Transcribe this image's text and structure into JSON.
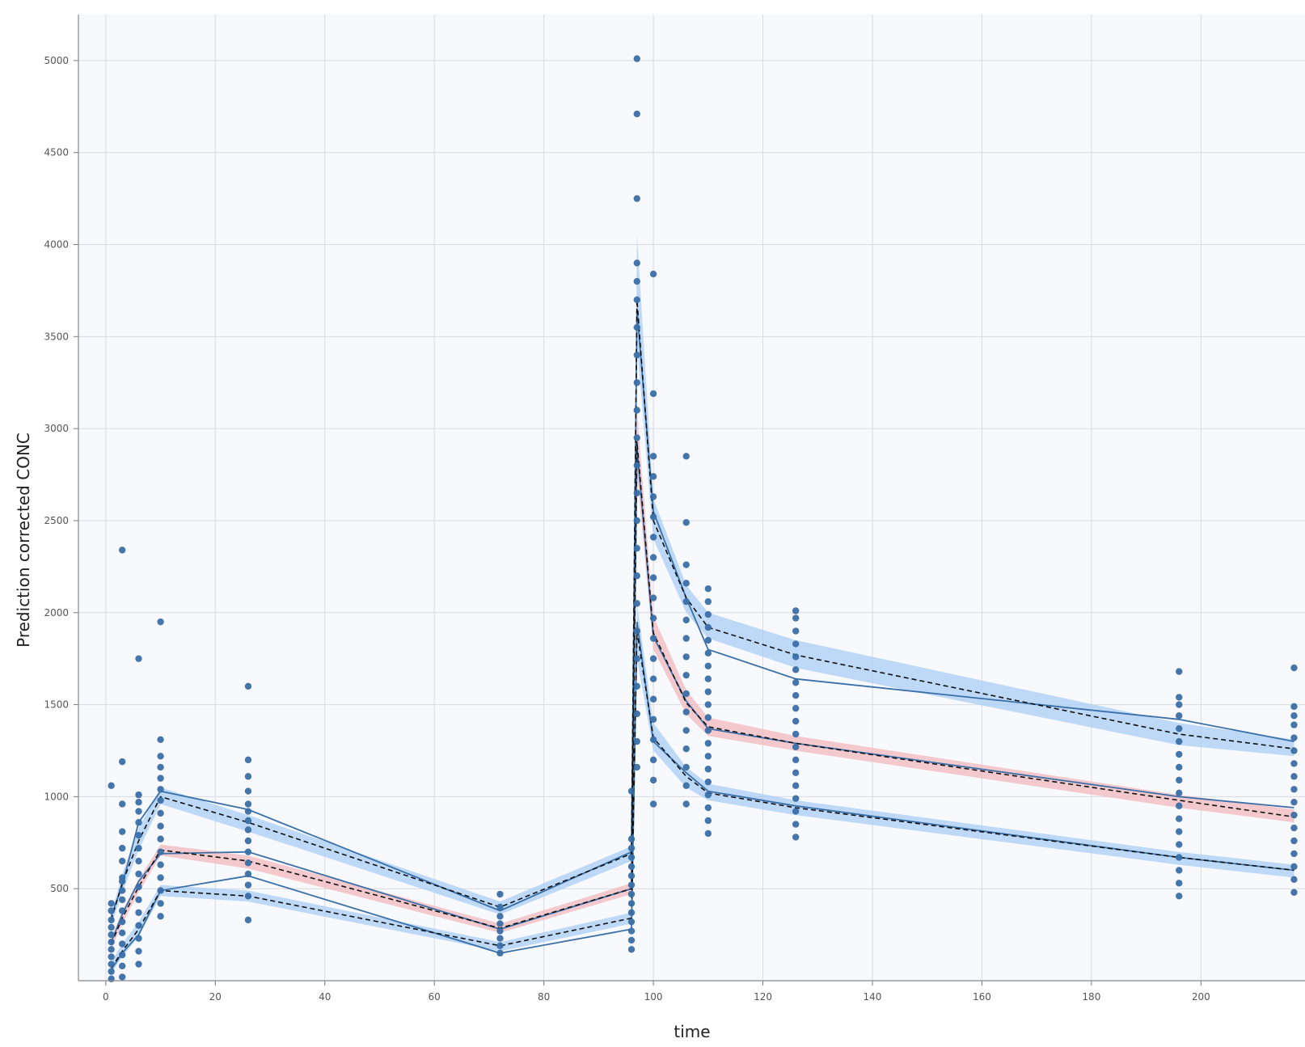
{
  "chart_data": {
    "type": "line",
    "title": "",
    "xlabel": "time",
    "ylabel": "Prediction corrected CONC",
    "xlim": [
      -5,
      219
    ],
    "ylim": [
      0,
      5250
    ],
    "x_ticks": [
      0,
      20,
      40,
      60,
      80,
      100,
      120,
      140,
      160,
      180,
      200
    ],
    "y_ticks": [
      500,
      1000,
      1500,
      2000,
      2500,
      3000,
      3500,
      4000,
      4500,
      5000
    ],
    "grid": true,
    "legend": "none",
    "colors": {
      "observed": "#3a6fa8",
      "outer_band": "#a9cdf5",
      "median_band": "#f2b8bd",
      "simulated_median": "#111111",
      "background": "#f8f9fc",
      "grid": "#d8dbe2"
    },
    "bands": [
      {
        "role": "upper",
        "color": "outer_band",
        "x": [
          1,
          3,
          6,
          10,
          26,
          72,
          96,
          97,
          100,
          106,
          110,
          126,
          196,
          217
        ],
        "lo": [
          300,
          480,
          710,
          960,
          810,
          360,
          650,
          3450,
          2400,
          2000,
          1860,
          1700,
          1280,
          1220
        ],
        "hi": [
          360,
          580,
          830,
          1050,
          900,
          430,
          730,
          4050,
          2620,
          2150,
          2000,
          1850,
          1400,
          1310
        ]
      },
      {
        "role": "median",
        "color": "median_band",
        "x": [
          1,
          3,
          6,
          10,
          26,
          72,
          96,
          97,
          100,
          106,
          110,
          126,
          196,
          217
        ],
        "lo": [
          170,
          310,
          480,
          680,
          610,
          260,
          470,
          2750,
          1800,
          1450,
          1330,
          1250,
          940,
          860
        ],
        "hi": [
          230,
          380,
          550,
          740,
          680,
          310,
          530,
          3100,
          1980,
          1580,
          1430,
          1330,
          1010,
          930
        ]
      },
      {
        "role": "lower",
        "color": "outer_band",
        "x": [
          1,
          3,
          6,
          10,
          26,
          72,
          96,
          97,
          100,
          106,
          110,
          126,
          196,
          217
        ],
        "lo": [
          40,
          130,
          240,
          460,
          430,
          160,
          310,
          1750,
          1250,
          1050,
          980,
          900,
          630,
          560
        ],
        "hi": [
          100,
          200,
          320,
          520,
          490,
          210,
          370,
          2050,
          1400,
          1160,
          1070,
          980,
          700,
          630
        ]
      }
    ],
    "series": [
      {
        "role": "observed_upper",
        "style": "solid",
        "x": [
          1,
          3,
          6,
          10,
          26,
          72,
          96,
          97,
          100,
          106,
          110,
          126,
          196,
          217
        ],
        "y": [
          350,
          520,
          860,
          1030,
          930,
          380,
          700,
          3650,
          2550,
          2080,
          1800,
          1640,
          1420,
          1300
        ]
      },
      {
        "role": "observed_median",
        "style": "solid",
        "x": [
          1,
          3,
          6,
          10,
          26,
          72,
          96,
          97,
          100,
          106,
          110,
          126,
          196,
          217
        ],
        "y": [
          210,
          360,
          540,
          690,
          700,
          280,
          500,
          2900,
          1870,
          1520,
          1370,
          1290,
          1000,
          940
        ]
      },
      {
        "role": "observed_lower",
        "style": "solid",
        "x": [
          1,
          3,
          6,
          10,
          26,
          72,
          96,
          97,
          100,
          106,
          110,
          126,
          196,
          217
        ],
        "y": [
          60,
          150,
          250,
          490,
          570,
          150,
          280,
          1950,
          1300,
          1130,
          1030,
          950,
          670,
          600
        ]
      },
      {
        "role": "simulated_upper_median",
        "style": "dashed",
        "x": [
          1,
          3,
          6,
          10,
          26,
          72,
          96,
          97,
          100,
          106,
          110,
          126,
          196,
          217
        ],
        "y": [
          330,
          530,
          760,
          1000,
          860,
          400,
          690,
          3700,
          2500,
          2080,
          1920,
          1770,
          1340,
          1260
        ]
      },
      {
        "role": "simulated_median_median",
        "style": "dashed",
        "x": [
          1,
          3,
          6,
          10,
          26,
          72,
          96,
          97,
          100,
          106,
          110,
          126,
          196,
          217
        ],
        "y": [
          200,
          340,
          510,
          710,
          650,
          285,
          500,
          2930,
          1890,
          1510,
          1380,
          1290,
          980,
          890
        ]
      },
      {
        "role": "simulated_lower_median",
        "style": "dashed",
        "x": [
          1,
          3,
          6,
          10,
          26,
          72,
          96,
          97,
          100,
          106,
          110,
          126,
          196,
          217
        ],
        "y": [
          70,
          160,
          280,
          490,
          460,
          190,
          340,
          1900,
          1320,
          1110,
          1020,
          940,
          670,
          600
        ]
      }
    ],
    "observations": {
      "columns": [
        {
          "x": 1,
          "y": [
            10,
            50,
            90,
            130,
            170,
            210,
            250,
            290,
            330,
            380,
            420,
            1060
          ]
        },
        {
          "x": 3,
          "y": [
            20,
            80,
            140,
            200,
            260,
            320,
            380,
            440,
            490,
            540,
            560,
            650,
            720,
            810,
            960,
            1190,
            2340
          ]
        },
        {
          "x": 6,
          "y": [
            90,
            160,
            230,
            300,
            370,
            440,
            510,
            580,
            650,
            720,
            790,
            860,
            920,
            970,
            1010,
            1750
          ]
        },
        {
          "x": 10,
          "y": [
            350,
            420,
            490,
            560,
            630,
            700,
            770,
            840,
            910,
            980,
            1040,
            1100,
            1160,
            1220,
            1310,
            1950
          ]
        },
        {
          "x": 26,
          "y": [
            330,
            460,
            520,
            580,
            640,
            700,
            760,
            820,
            870,
            920,
            960,
            1030,
            1110,
            1200,
            1600
          ]
        },
        {
          "x": 72,
          "y": [
            150,
            190,
            230,
            270,
            310,
            350,
            400,
            470
          ]
        },
        {
          "x": 96,
          "y": [
            170,
            220,
            270,
            320,
            370,
            420,
            470,
            520,
            570,
            620,
            670,
            720,
            770,
            1030
          ]
        },
        {
          "x": 97,
          "y": [
            1160,
            1300,
            1450,
            1600,
            1750,
            1900,
            2050,
            2200,
            2350,
            2500,
            2650,
            2800,
            2950,
            3100,
            3250,
            3400,
            3550,
            3700,
            3800,
            3900,
            4250,
            4710,
            5010
          ]
        },
        {
          "x": 100,
          "y": [
            960,
            1090,
            1200,
            1310,
            1420,
            1530,
            1640,
            1750,
            1860,
            1970,
            2080,
            2190,
            2300,
            2410,
            2520,
            2630,
            2740,
            2850,
            3190,
            3840
          ]
        },
        {
          "x": 106,
          "y": [
            960,
            1060,
            1160,
            1260,
            1360,
            1460,
            1560,
            1660,
            1760,
            1860,
            1960,
            2060,
            2160,
            2260,
            2490,
            2850
          ]
        },
        {
          "x": 110,
          "y": [
            800,
            870,
            940,
            1010,
            1080,
            1150,
            1220,
            1290,
            1360,
            1430,
            1500,
            1570,
            1640,
            1710,
            1780,
            1850,
            1920,
            1990,
            2060,
            2130
          ]
        },
        {
          "x": 126,
          "y": [
            780,
            850,
            920,
            990,
            1060,
            1130,
            1200,
            1270,
            1340,
            1410,
            1480,
            1550,
            1620,
            1690,
            1760,
            1830,
            1900,
            1970,
            2010
          ]
        },
        {
          "x": 196,
          "y": [
            460,
            530,
            600,
            670,
            740,
            810,
            880,
            950,
            1020,
            1090,
            1160,
            1230,
            1300,
            1370,
            1440,
            1500,
            1540,
            1680
          ]
        },
        {
          "x": 217,
          "y": [
            480,
            550,
            620,
            690,
            760,
            830,
            900,
            970,
            1040,
            1110,
            1180,
            1250,
            1320,
            1390,
            1440,
            1490,
            1700
          ]
        }
      ]
    }
  }
}
